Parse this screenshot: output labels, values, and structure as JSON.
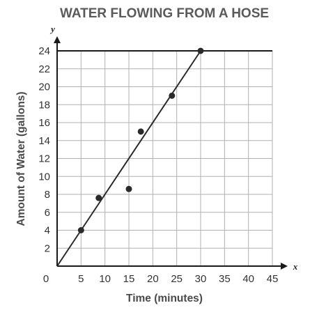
{
  "chart_data": {
    "type": "scatter",
    "title": "WATER FLOWING FROM A HOSE",
    "xlabel": "Time (minutes)",
    "ylabel": "Amount of Water (gallons)",
    "x_axis_var": "x",
    "y_axis_var": "y",
    "xlim": [
      0,
      45
    ],
    "ylim": [
      0,
      24
    ],
    "x_ticks": [
      5,
      10,
      15,
      20,
      25,
      30,
      35,
      40,
      45
    ],
    "y_ticks": [
      2,
      4,
      6,
      8,
      10,
      12,
      14,
      16,
      18,
      20,
      22,
      24
    ],
    "origin_label": "0",
    "grid": true,
    "points": [
      {
        "x": 5,
        "y": 4
      },
      {
        "x": 8.7,
        "y": 7.6
      },
      {
        "x": 15,
        "y": 8.6
      },
      {
        "x": 17.5,
        "y": 15
      },
      {
        "x": 24,
        "y": 19
      },
      {
        "x": 30,
        "y": 24
      }
    ],
    "trend_line": {
      "x": [
        0,
        30
      ],
      "y": [
        0,
        24
      ]
    },
    "colors": {
      "grid": "#b0b0b0",
      "axis": "#1a1a1a",
      "points": "#2a2a2a",
      "line": "#2a2a2a",
      "title": "#5a5a5a"
    }
  }
}
